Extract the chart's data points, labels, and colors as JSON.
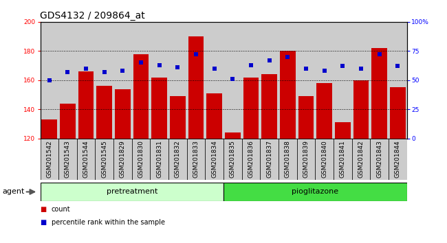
{
  "title": "GDS4132 / 209864_at",
  "samples": [
    "GSM201542",
    "GSM201543",
    "GSM201544",
    "GSM201545",
    "GSM201829",
    "GSM201830",
    "GSM201831",
    "GSM201832",
    "GSM201833",
    "GSM201834",
    "GSM201835",
    "GSM201836",
    "GSM201837",
    "GSM201838",
    "GSM201839",
    "GSM201840",
    "GSM201841",
    "GSM201842",
    "GSM201843",
    "GSM201844"
  ],
  "counts": [
    133,
    144,
    166,
    156,
    154,
    178,
    162,
    149,
    190,
    151,
    124,
    162,
    164,
    180,
    149,
    158,
    131,
    160,
    182,
    155
  ],
  "percentiles": [
    50,
    57,
    60,
    57,
    58,
    65,
    63,
    61,
    72,
    60,
    51,
    63,
    67,
    70,
    60,
    58,
    62,
    60,
    72,
    62
  ],
  "ylim_left": [
    120,
    200
  ],
  "ylim_right": [
    0,
    100
  ],
  "yticks_left": [
    120,
    140,
    160,
    180,
    200
  ],
  "yticks_right": [
    0,
    25,
    50,
    75,
    100
  ],
  "bar_color": "#cc0000",
  "dot_color": "#0000cc",
  "col_bg_color": "#cccccc",
  "plot_bg_color": "#ffffff",
  "group1_label": "pretreatment",
  "group2_label": "pioglitazone",
  "group1_color": "#ccffcc",
  "group2_color": "#44dd44",
  "group1_count": 10,
  "agent_label": "agent",
  "legend_count": "count",
  "legend_pct": "percentile rank within the sample",
  "title_fontsize": 10,
  "tick_fontsize": 6.5,
  "label_fontsize": 8
}
